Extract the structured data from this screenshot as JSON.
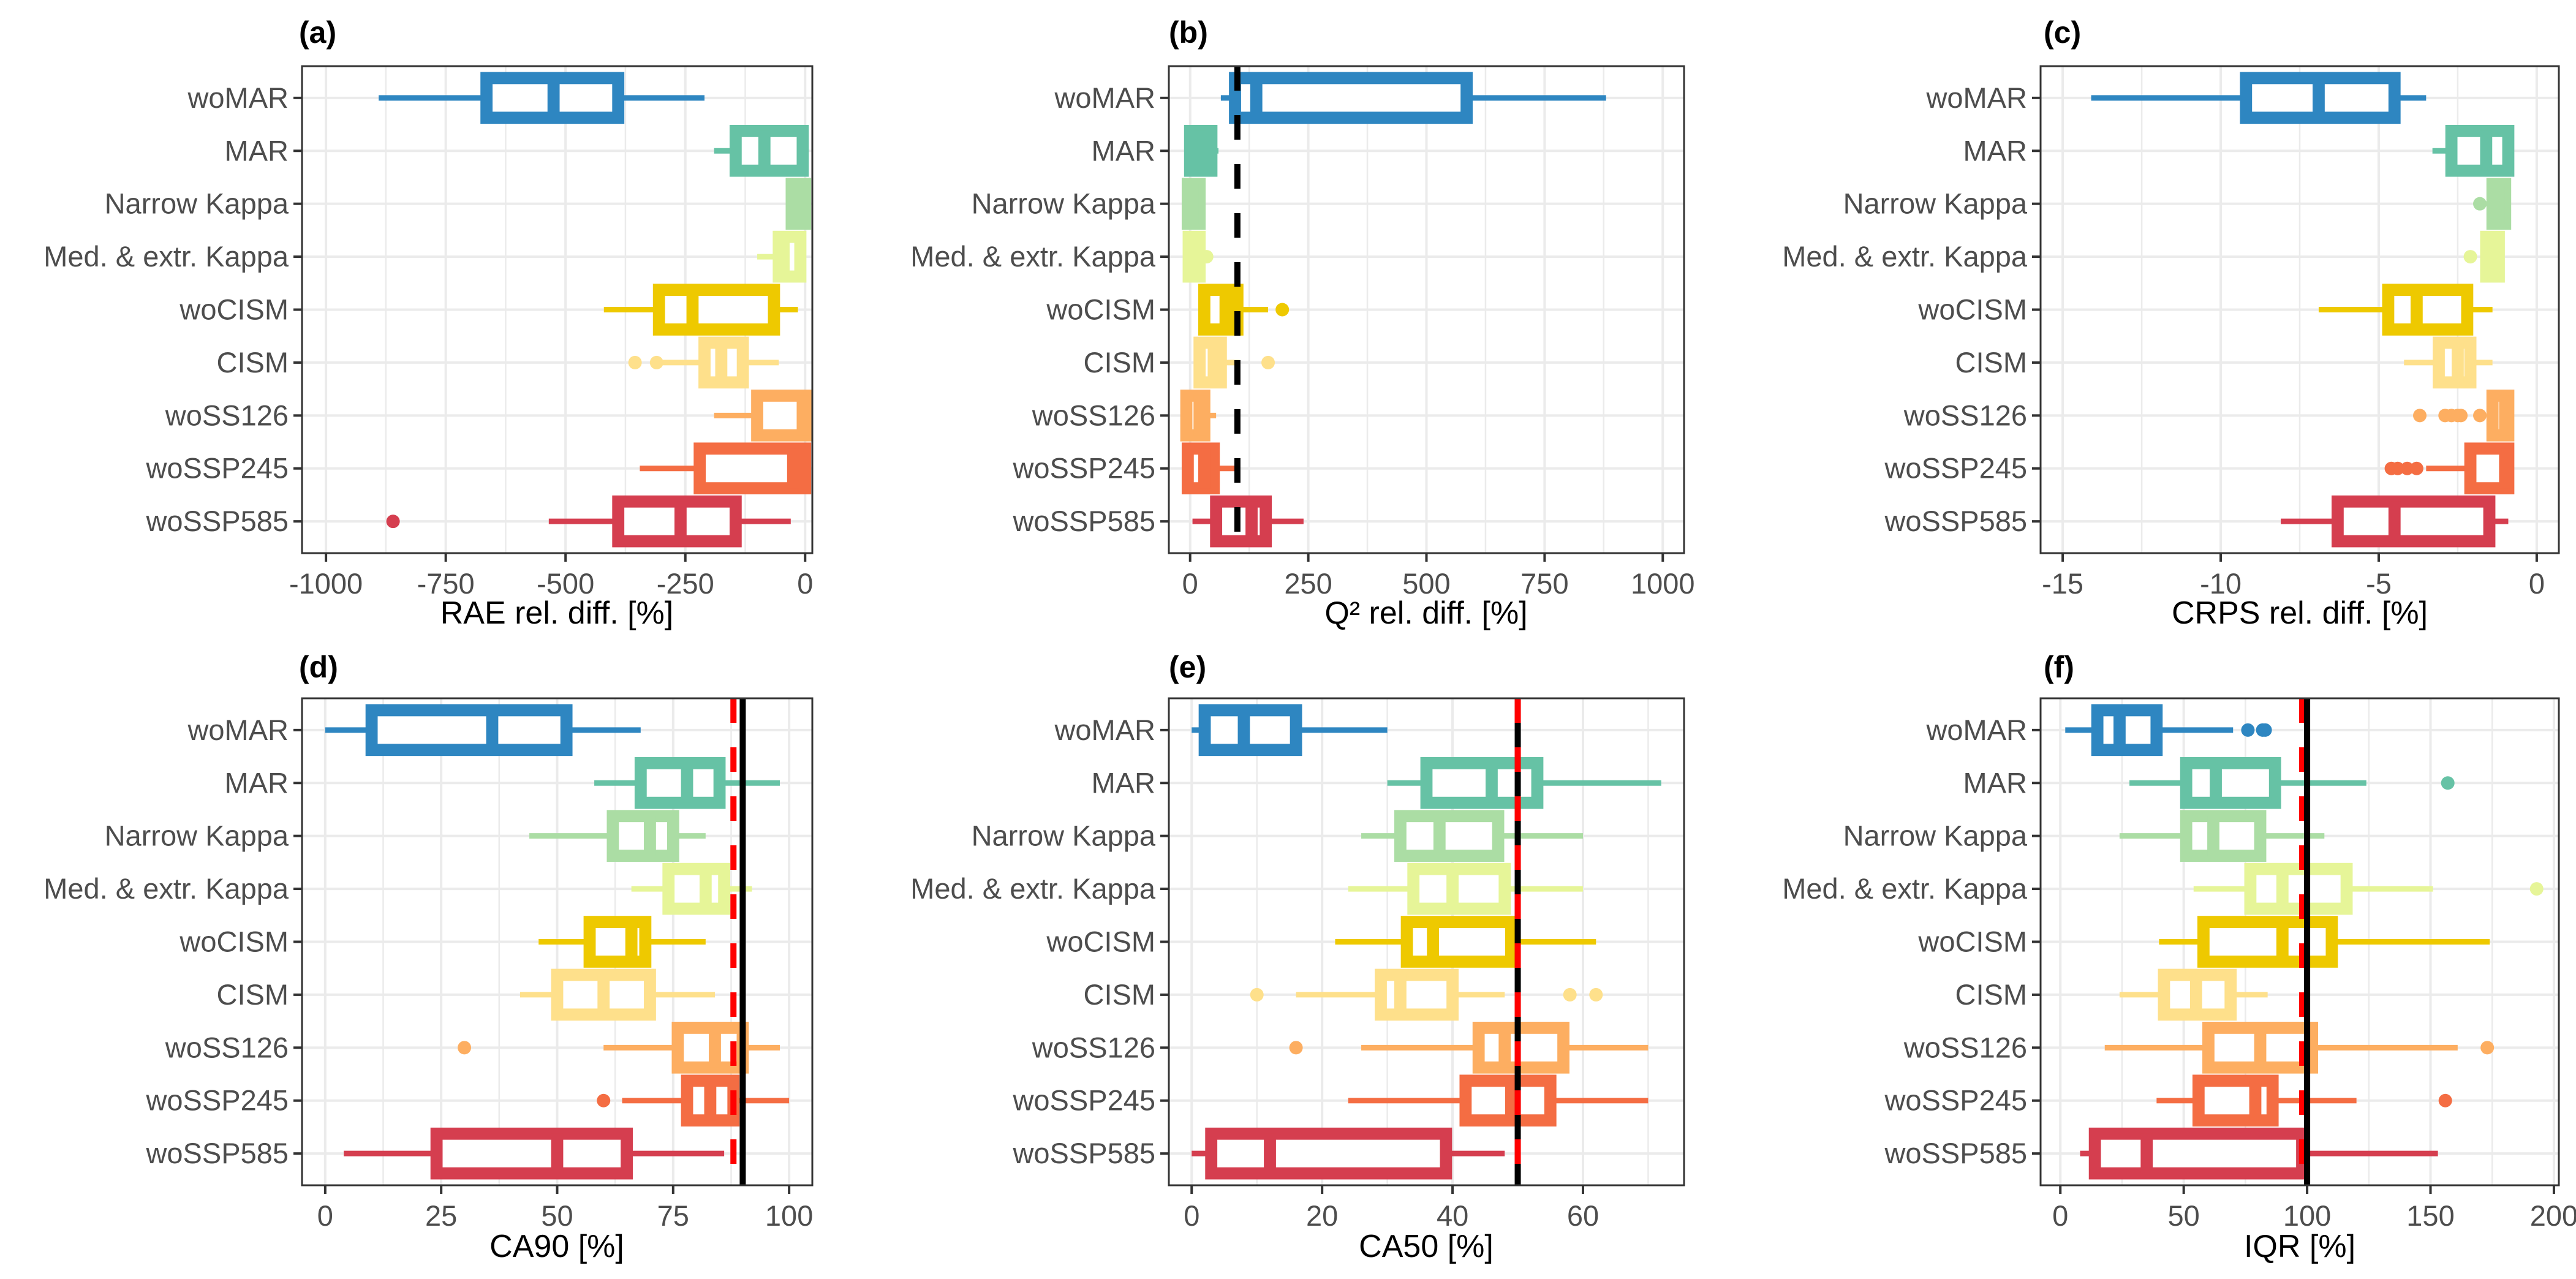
{
  "figure": {
    "categories": [
      "woMAR",
      "MAR",
      "Narrow Kappa",
      "Med. & extr. Kappa",
      "woCISM",
      "CISM",
      "woSS126",
      "woSSP245",
      "woSSP585"
    ],
    "colors": {
      "woMAR": "#2e86c1",
      "MAR": "#66c2a5",
      "Narrow Kappa": "#abdda4",
      "Med. & extr. Kappa": "#e6f598",
      "woCISM": "#eec900",
      "CISM": "#fee08b",
      "woSS126": "#fdae61",
      "woSSP245": "#f46d43",
      "woSSP585": "#d53e4f"
    },
    "reference_line_colors": {
      "black": "#000000",
      "red": "#ff0000"
    }
  },
  "chart_data": [
    {
      "type": "boxplot",
      "panel": "(a)",
      "orientation": "horizontal",
      "xlabel": "RAE rel. diff. [%]",
      "xlim": [
        -1050,
        15
      ],
      "xticks": [
        -1000,
        -750,
        -500,
        -250,
        0
      ],
      "xtick_labels": [
        "-1000",
        "-750",
        "-500",
        "-250",
        "0"
      ],
      "grid": true,
      "reference_lines": [],
      "boxes": [
        {
          "category": "woMAR",
          "whisker_low": -890,
          "q1": -665,
          "median": -525,
          "q3": -390,
          "whisker_high": -210,
          "outliers": []
        },
        {
          "category": "MAR",
          "whisker_low": -190,
          "q1": -145,
          "median": -85,
          "q3": -5,
          "whisker_high": 0,
          "outliers": []
        },
        {
          "category": "Narrow Kappa",
          "whisker_low": -40,
          "q1": -28,
          "median": -5,
          "q3": 0,
          "whisker_high": 0,
          "outliers": []
        },
        {
          "category": "Med. & extr. Kappa",
          "whisker_low": -100,
          "q1": -55,
          "median": -45,
          "q3": -10,
          "whisker_high": -5,
          "outliers": []
        },
        {
          "category": "woCISM",
          "whisker_low": -420,
          "q1": -305,
          "median": -235,
          "q3": -65,
          "whisker_high": -15,
          "outliers": []
        },
        {
          "category": "CISM",
          "whisker_low": -310,
          "q1": -210,
          "median": -175,
          "q3": -130,
          "whisker_high": -55,
          "outliers": [
            -355,
            -310
          ]
        },
        {
          "category": "woSS126",
          "whisker_low": -190,
          "q1": -100,
          "median": -5,
          "q3": 2,
          "whisker_high": 2,
          "outliers": []
        },
        {
          "category": "woSSP245",
          "whisker_low": -345,
          "q1": -220,
          "median": -25,
          "q3": 0,
          "whisker_high": 0,
          "outliers": []
        },
        {
          "category": "woSSP585",
          "whisker_low": -535,
          "q1": -390,
          "median": -260,
          "q3": -145,
          "whisker_high": -30,
          "outliers": [
            -860
          ]
        }
      ]
    },
    {
      "type": "boxplot",
      "panel": "(b)",
      "orientation": "horizontal",
      "xlabel": "Q² rel. diff. [%]",
      "xlim": [
        -45,
        1045
      ],
      "xticks": [
        0,
        250,
        500,
        750,
        1000
      ],
      "xtick_labels": [
        "0",
        "250",
        "500",
        "750",
        "1000"
      ],
      "grid": true,
      "reference_lines": [
        {
          "value": 100,
          "style": "dashed",
          "color": "black"
        }
      ],
      "boxes": [
        {
          "category": "woMAR",
          "whisker_low": 65,
          "q1": 95,
          "median": 140,
          "q3": 585,
          "whisker_high": 880,
          "outliers": []
        },
        {
          "category": "MAR",
          "whisker_low": 0,
          "q1": 0,
          "median": 20,
          "q3": 45,
          "whisker_high": 60,
          "outliers": []
        },
        {
          "category": "Narrow Kappa",
          "whisker_low": -5,
          "q1": -5,
          "median": 5,
          "q3": 20,
          "whisker_high": 20,
          "outliers": []
        },
        {
          "category": "Med. & extr. Kappa",
          "whisker_low": -3,
          "q1": -3,
          "median": 8,
          "q3": 20,
          "whisker_high": 22,
          "outliers": [
            35
          ]
        },
        {
          "category": "woCISM",
          "whisker_low": 20,
          "q1": 30,
          "median": 75,
          "q3": 100,
          "whisker_high": 165,
          "outliers": [
            195
          ]
        },
        {
          "category": "CISM",
          "whisker_low": 15,
          "q1": 20,
          "median": 50,
          "q3": 65,
          "whisker_high": 105,
          "outliers": [
            165
          ]
        },
        {
          "category": "woSS126",
          "whisker_low": -8,
          "q1": -8,
          "median": 20,
          "q3": 30,
          "whisker_high": 55,
          "outliers": []
        },
        {
          "category": "woSSP245",
          "whisker_low": -5,
          "q1": -5,
          "median": 30,
          "q3": 50,
          "whisker_high": 95,
          "outliers": []
        },
        {
          "category": "woSSP585",
          "whisker_low": 5,
          "q1": 55,
          "median": 130,
          "q3": 160,
          "whisker_high": 240,
          "outliers": []
        }
      ]
    },
    {
      "type": "boxplot",
      "panel": "(c)",
      "orientation": "horizontal",
      "xlabel": "CRPS rel. diff. [%]",
      "xlim": [
        -15.7,
        0.7
      ],
      "xticks": [
        -15,
        -10,
        -5,
        0
      ],
      "xtick_labels": [
        "-15",
        "-10",
        "-5",
        "0"
      ],
      "grid": true,
      "reference_lines": [],
      "boxes": [
        {
          "category": "woMAR",
          "whisker_low": -14.1,
          "q1": -9.2,
          "median": -6.9,
          "q3": -4.5,
          "whisker_high": -3.5,
          "outliers": []
        },
        {
          "category": "MAR",
          "whisker_low": -3.3,
          "q1": -2.7,
          "median": -1.6,
          "q3": -0.9,
          "whisker_high": -0.9,
          "outliers": []
        },
        {
          "category": "Narrow Kappa",
          "whisker_low": -1.6,
          "q1": -1.4,
          "median": -1.2,
          "q3": -1.0,
          "whisker_high": -1.0,
          "outliers": [
            -1.8
          ]
        },
        {
          "category": "Med. & extr. Kappa",
          "whisker_low": -1.7,
          "q1": -1.6,
          "median": -1.4,
          "q3": -1.2,
          "whisker_high": -1.2,
          "outliers": [
            -2.1
          ]
        },
        {
          "category": "woCISM",
          "whisker_low": -6.9,
          "q1": -4.7,
          "median": -3.8,
          "q3": -2.2,
          "whisker_high": -1.4,
          "outliers": []
        },
        {
          "category": "CISM",
          "whisker_low": -4.2,
          "q1": -3.1,
          "median": -2.5,
          "q3": -2.1,
          "whisker_high": -1.4,
          "outliers": []
        },
        {
          "category": "woSS126",
          "whisker_low": -1.4,
          "q1": -1.4,
          "median": -1.0,
          "q3": -0.9,
          "whisker_high": -0.9,
          "outliers": [
            -3.7,
            -2.9,
            -2.7,
            -2.5,
            -2.4,
            -1.8
          ]
        },
        {
          "category": "woSSP245",
          "whisker_low": -3.5,
          "q1": -2.1,
          "median": -1.0,
          "q3": -0.9,
          "whisker_high": -0.9,
          "outliers": [
            -4.6,
            -4.4,
            -4.1,
            -3.8
          ]
        },
        {
          "category": "woSSP585",
          "whisker_low": -8.1,
          "q1": -6.3,
          "median": -4.5,
          "q3": -1.5,
          "whisker_high": -0.9,
          "outliers": []
        }
      ]
    },
    {
      "type": "boxplot",
      "panel": "(d)",
      "orientation": "horizontal",
      "xlabel": "CA90 [%]",
      "xlim": [
        -5,
        105
      ],
      "xticks": [
        0,
        25,
        50,
        75,
        100
      ],
      "xtick_labels": [
        "0",
        "25",
        "50",
        "75",
        "100"
      ],
      "grid": true,
      "reference_lines": [
        {
          "value": 88,
          "style": "dashed",
          "color": "red"
        },
        {
          "value": 90,
          "style": "solid",
          "color": "black"
        }
      ],
      "boxes": [
        {
          "category": "woMAR",
          "whisker_low": 0,
          "q1": 10,
          "median": 36,
          "q3": 52,
          "whisker_high": 68,
          "outliers": []
        },
        {
          "category": "MAR",
          "whisker_low": 58,
          "q1": 68,
          "median": 78,
          "q3": 85,
          "whisker_high": 98,
          "outliers": []
        },
        {
          "category": "Narrow Kappa",
          "whisker_low": 44,
          "q1": 62,
          "median": 70,
          "q3": 75,
          "whisker_high": 82,
          "outliers": []
        },
        {
          "category": "Med. & extr. Kappa",
          "whisker_low": 66,
          "q1": 74,
          "median": 82,
          "q3": 86,
          "whisker_high": 92,
          "outliers": []
        },
        {
          "category": "woCISM",
          "whisker_low": 46,
          "q1": 57,
          "median": 66,
          "q3": 69,
          "whisker_high": 82,
          "outliers": []
        },
        {
          "category": "CISM",
          "whisker_low": 42,
          "q1": 50,
          "median": 60,
          "q3": 70,
          "whisker_high": 84,
          "outliers": []
        },
        {
          "category": "woSS126",
          "whisker_low": 60,
          "q1": 76,
          "median": 84,
          "q3": 90,
          "whisker_high": 98,
          "outliers": [
            30
          ]
        },
        {
          "category": "woSSP245",
          "whisker_low": 64,
          "q1": 78,
          "median": 83,
          "q3": 88,
          "whisker_high": 100,
          "outliers": [
            60
          ]
        },
        {
          "category": "woSSP585",
          "whisker_low": 4,
          "q1": 24,
          "median": 50,
          "q3": 65,
          "whisker_high": 86,
          "outliers": []
        }
      ]
    },
    {
      "type": "boxplot",
      "panel": "(e)",
      "orientation": "horizontal",
      "xlabel": "CA50 [%]",
      "xlim": [
        -3.5,
        75.5
      ],
      "xticks": [
        0,
        20,
        40,
        60
      ],
      "xtick_labels": [
        "0",
        "20",
        "40",
        "60"
      ],
      "grid": true,
      "reference_lines": [
        {
          "value": 50,
          "style": "solid",
          "color": "black"
        },
        {
          "value": 50,
          "style": "dashed",
          "color": "red"
        }
      ],
      "boxes": [
        {
          "category": "woMAR",
          "whisker_low": 0,
          "q1": 2,
          "median": 8,
          "q3": 16,
          "whisker_high": 30,
          "outliers": []
        },
        {
          "category": "MAR",
          "whisker_low": 30,
          "q1": 36,
          "median": 46,
          "q3": 53,
          "whisker_high": 72,
          "outliers": []
        },
        {
          "category": "Narrow Kappa",
          "whisker_low": 26,
          "q1": 32,
          "median": 38,
          "q3": 47,
          "whisker_high": 60,
          "outliers": []
        },
        {
          "category": "Med. & extr. Kappa",
          "whisker_low": 24,
          "q1": 34,
          "median": 40,
          "q3": 48,
          "whisker_high": 60,
          "outliers": []
        },
        {
          "category": "woCISM",
          "whisker_low": 22,
          "q1": 33,
          "median": 37,
          "q3": 49,
          "whisker_high": 62,
          "outliers": []
        },
        {
          "category": "CISM",
          "whisker_low": 16,
          "q1": 29,
          "median": 32,
          "q3": 40,
          "whisker_high": 48,
          "outliers": [
            10,
            58,
            62
          ]
        },
        {
          "category": "woSS126",
          "whisker_low": 26,
          "q1": 44,
          "median": 48,
          "q3": 57,
          "whisker_high": 70,
          "outliers": [
            16
          ]
        },
        {
          "category": "woSSP245",
          "whisker_low": 24,
          "q1": 42,
          "median": 49,
          "q3": 55,
          "whisker_high": 70,
          "outliers": []
        },
        {
          "category": "woSSP585",
          "whisker_low": 0,
          "q1": 3,
          "median": 12,
          "q3": 39,
          "whisker_high": 48,
          "outliers": []
        }
      ]
    },
    {
      "type": "boxplot",
      "panel": "(f)",
      "orientation": "horizontal",
      "xlabel": "IQR [%]",
      "xlim": [
        -8,
        202
      ],
      "xticks": [
        0,
        50,
        100,
        150,
        200
      ],
      "xtick_labels": [
        "0",
        "50",
        "100",
        "150",
        "200"
      ],
      "grid": true,
      "reference_lines": [
        {
          "value": 98,
          "style": "dashed",
          "color": "red"
        },
        {
          "value": 100,
          "style": "solid",
          "color": "black"
        }
      ],
      "boxes": [
        {
          "category": "woMAR",
          "whisker_low": 2,
          "q1": 15,
          "median": 24,
          "q3": 39,
          "whisker_high": 70,
          "outliers": [
            76,
            82,
            83
          ]
        },
        {
          "category": "MAR",
          "whisker_low": 28,
          "q1": 51,
          "median": 63,
          "q3": 87,
          "whisker_high": 124,
          "outliers": [
            157
          ]
        },
        {
          "category": "Narrow Kappa",
          "whisker_low": 24,
          "q1": 51,
          "median": 62,
          "q3": 81,
          "whisker_high": 107,
          "outliers": []
        },
        {
          "category": "Med. & extr. Kappa",
          "whisker_low": 54,
          "q1": 77,
          "median": 90,
          "q3": 116,
          "whisker_high": 151,
          "outliers": [
            193
          ]
        },
        {
          "category": "woCISM",
          "whisker_low": 40,
          "q1": 58,
          "median": 90,
          "q3": 110,
          "whisker_high": 174,
          "outliers": []
        },
        {
          "category": "CISM",
          "whisker_low": 24,
          "q1": 42,
          "median": 55,
          "q3": 69,
          "whisker_high": 84,
          "outliers": []
        },
        {
          "category": "woSS126",
          "whisker_low": 18,
          "q1": 60,
          "median": 81,
          "q3": 102,
          "whisker_high": 161,
          "outliers": [
            173
          ]
        },
        {
          "category": "woSSP245",
          "whisker_low": 39,
          "q1": 56,
          "median": 79,
          "q3": 86,
          "whisker_high": 120,
          "outliers": [
            156
          ]
        },
        {
          "category": "woSSP585",
          "whisker_low": 8,
          "q1": 14,
          "median": 35,
          "q3": 98,
          "whisker_high": 153,
          "outliers": []
        }
      ]
    }
  ]
}
